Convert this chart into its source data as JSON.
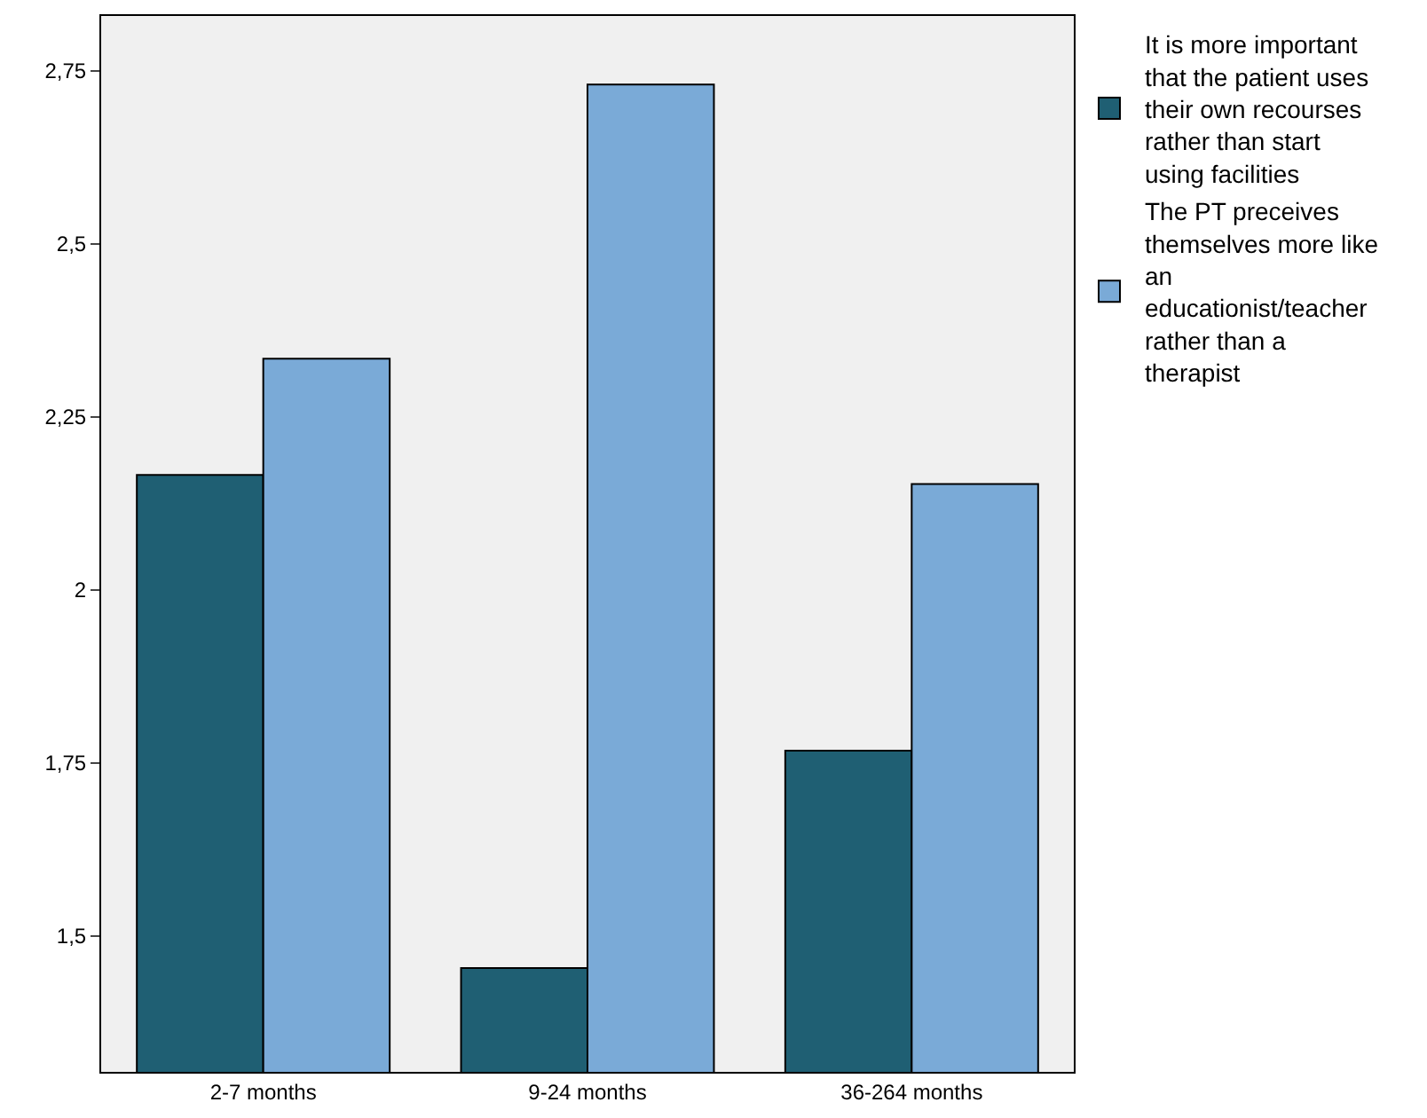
{
  "chart_data": {
    "type": "bar",
    "categories": [
      "2-7 months",
      "9-24 months",
      "36-264 months"
    ],
    "series": [
      {
        "name": "It is more important that the patient uses their own recourses rather than start using facilities",
        "color": "#1f5f73",
        "values": [
          2.166,
          1.454,
          1.768
        ]
      },
      {
        "name": "The PT preceives themselves more like an educationist/teacher rather than a therapist",
        "color": "#7aaad7",
        "values": [
          2.334,
          2.73,
          2.153
        ]
      }
    ],
    "ylim": [
      1.304,
      2.829
    ],
    "yticks": [
      {
        "value": 1.5,
        "label": "1,5"
      },
      {
        "value": 1.75,
        "label": "1,75"
      },
      2,
      {
        "value": 2.25,
        "label": "2,25"
      },
      {
        "value": 2.5,
        "label": "2,5"
      },
      {
        "value": 2.75,
        "label": "2,75"
      }
    ],
    "grid": false,
    "legend": "top right"
  }
}
